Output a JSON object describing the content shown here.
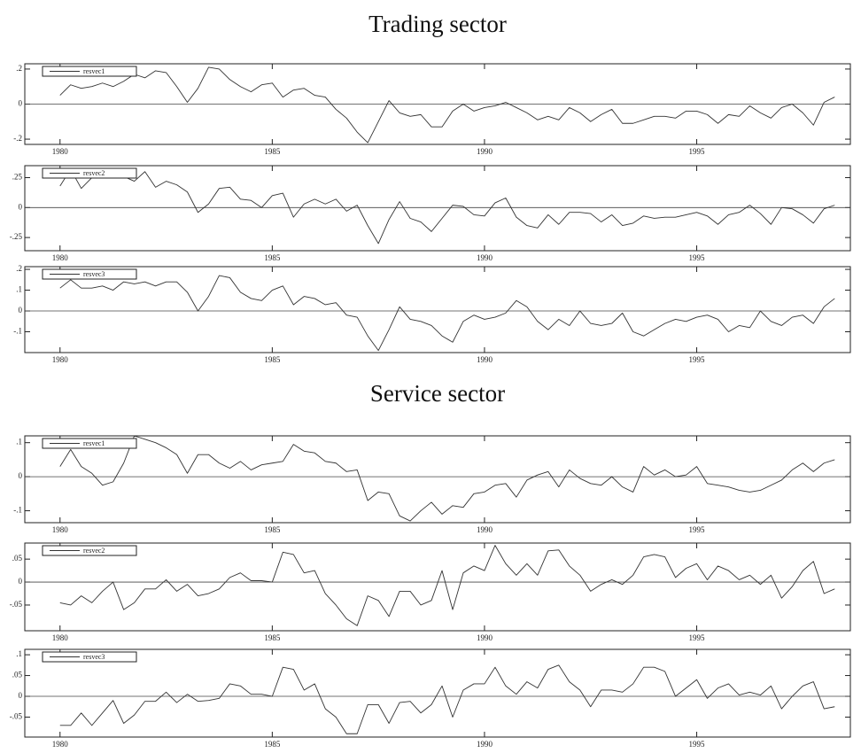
{
  "chart_data": [
    {
      "type": "line",
      "title": "Trading sector",
      "x": [
        1980,
        1980.25,
        1980.5,
        1980.75,
        1981,
        1981.25,
        1981.5,
        1981.75,
        1982,
        1982.25,
        1982.5,
        1982.75,
        1983,
        1983.25,
        1983.5,
        1983.75,
        1984,
        1984.25,
        1984.5,
        1984.75,
        1985,
        1985.25,
        1985.5,
        1985.75,
        1986,
        1986.25,
        1986.5,
        1986.75,
        1987,
        1987.25,
        1987.5,
        1987.75,
        1988,
        1988.25,
        1988.5,
        1988.75,
        1989,
        1989.25,
        1989.5,
        1989.75,
        1990,
        1990.25,
        1990.5,
        1990.75,
        1991,
        1991.25,
        1991.5,
        1991.75,
        1992,
        1992.25,
        1992.5,
        1992.75,
        1993,
        1993.25,
        1993.5,
        1993.75,
        1994,
        1994.25,
        1994.5,
        1994.75,
        1995,
        1995.25,
        1995.5,
        1995.75,
        1996,
        1996.25,
        1996.5,
        1996.75,
        1997,
        1997.25,
        1997.5,
        1997.75,
        1998,
        1998.25
      ],
      "series": [
        {
          "name": "resvec1",
          "color": "#333333",
          "values": [
            0.05,
            0.11,
            0.09,
            0.1,
            0.12,
            0.1,
            0.13,
            0.17,
            0.15,
            0.19,
            0.18,
            0.1,
            0.01,
            0.09,
            0.21,
            0.2,
            0.14,
            0.1,
            0.07,
            0.11,
            0.12,
            0.04,
            0.08,
            0.09,
            0.05,
            0.04,
            -0.03,
            -0.08,
            -0.16,
            -0.22,
            -0.1,
            0.02,
            -0.05,
            -0.07,
            -0.06,
            -0.13,
            -0.13,
            -0.04,
            0,
            -0.04,
            -0.02,
            -0.01,
            0.01,
            -0.02,
            -0.05,
            -0.09,
            -0.07,
            -0.09,
            -0.02,
            -0.05,
            -0.1,
            -0.06,
            -0.03,
            -0.11,
            -0.11,
            -0.09,
            -0.07,
            -0.07,
            -0.08,
            -0.04,
            -0.04,
            -0.06,
            -0.11,
            -0.06,
            -0.07,
            -0.01,
            -0.05,
            -0.08,
            -0.02,
            0,
            -0.05,
            -0.12,
            0.01,
            0.04
          ]
        }
      ],
      "xlim": [
        1979.17,
        1998.62
      ],
      "xticks": [
        1980,
        1985,
        1990,
        1995
      ],
      "ylim": [
        -0.23,
        0.23
      ],
      "yticks": [
        {
          "value": 0.2,
          "label": ".2"
        },
        0,
        {
          "value": -0.2,
          "label": "-.2"
        }
      ],
      "zero_line": true,
      "legend": "upper left"
    },
    {
      "type": "line",
      "x": [
        1980,
        1980.25,
        1980.5,
        1980.75,
        1981,
        1981.25,
        1981.5,
        1981.75,
        1982,
        1982.25,
        1982.5,
        1982.75,
        1983,
        1983.25,
        1983.5,
        1983.75,
        1984,
        1984.25,
        1984.5,
        1984.75,
        1985,
        1985.25,
        1985.5,
        1985.75,
        1986,
        1986.25,
        1986.5,
        1986.75,
        1987,
        1987.25,
        1987.5,
        1987.75,
        1988,
        1988.25,
        1988.5,
        1988.75,
        1989,
        1989.25,
        1989.5,
        1989.75,
        1990,
        1990.25,
        1990.5,
        1990.75,
        1991,
        1991.25,
        1991.5,
        1991.75,
        1992,
        1992.25,
        1992.5,
        1992.75,
        1993,
        1993.25,
        1993.5,
        1993.75,
        1994,
        1994.25,
        1994.5,
        1994.75,
        1995,
        1995.25,
        1995.5,
        1995.75,
        1996,
        1996.25,
        1996.5,
        1996.75,
        1997,
        1997.25,
        1997.5,
        1997.75,
        1998,
        1998.25
      ],
      "series": [
        {
          "name": "resvec2",
          "color": "#333333",
          "values": [
            0.18,
            0.32,
            0.16,
            0.25,
            0.27,
            0.26,
            0.26,
            0.22,
            0.3,
            0.17,
            0.22,
            0.19,
            0.13,
            -0.04,
            0.03,
            0.16,
            0.17,
            0.07,
            0.06,
            0.0,
            0.1,
            0.12,
            -0.08,
            0.03,
            0.07,
            0.03,
            0.07,
            -0.03,
            0.02,
            -0.15,
            -0.3,
            -0.1,
            0.05,
            -0.09,
            -0.12,
            -0.2,
            -0.09,
            0.02,
            0.01,
            -0.06,
            -0.07,
            0.04,
            0.08,
            -0.08,
            -0.15,
            -0.17,
            -0.06,
            -0.14,
            -0.04,
            -0.04,
            -0.05,
            -0.12,
            -0.06,
            -0.15,
            -0.13,
            -0.07,
            -0.09,
            -0.08,
            -0.08,
            -0.06,
            -0.04,
            -0.07,
            -0.14,
            -0.06,
            -0.04,
            0.02,
            -0.05,
            -0.14,
            0.0,
            -0.01,
            -0.06,
            -0.13,
            -0.01,
            0.02
          ]
        }
      ],
      "xlim": [
        1979.17,
        1998.62
      ],
      "xticks": [
        1980,
        1985,
        1990,
        1995
      ],
      "ylim": [
        -0.36,
        0.35
      ],
      "yticks": [
        {
          "value": 0.25,
          "label": ".25"
        },
        0,
        {
          "value": -0.25,
          "label": "-.25"
        }
      ],
      "zero_line": true,
      "legend": "upper left"
    },
    {
      "type": "line",
      "x": [
        1980,
        1980.25,
        1980.5,
        1980.75,
        1981,
        1981.25,
        1981.5,
        1981.75,
        1982,
        1982.25,
        1982.5,
        1982.75,
        1983,
        1983.25,
        1983.5,
        1983.75,
        1984,
        1984.25,
        1984.5,
        1984.75,
        1985,
        1985.25,
        1985.5,
        1985.75,
        1986,
        1986.25,
        1986.5,
        1986.75,
        1987,
        1987.25,
        1987.5,
        1987.75,
        1988,
        1988.25,
        1988.5,
        1988.75,
        1989,
        1989.25,
        1989.5,
        1989.75,
        1990,
        1990.25,
        1990.5,
        1990.75,
        1991,
        1991.25,
        1991.5,
        1991.75,
        1992,
        1992.25,
        1992.5,
        1992.75,
        1993,
        1993.25,
        1993.5,
        1993.75,
        1994,
        1994.25,
        1994.5,
        1994.75,
        1995,
        1995.25,
        1995.5,
        1995.75,
        1996,
        1996.25,
        1996.5,
        1996.75,
        1997,
        1997.25,
        1997.5,
        1997.75,
        1998,
        1998.25
      ],
      "series": [
        {
          "name": "resvec3",
          "color": "#333333",
          "values": [
            0.11,
            0.15,
            0.11,
            0.11,
            0.12,
            0.1,
            0.14,
            0.13,
            0.14,
            0.12,
            0.14,
            0.14,
            0.09,
            0.0,
            0.07,
            0.17,
            0.16,
            0.09,
            0.06,
            0.05,
            0.1,
            0.12,
            0.03,
            0.07,
            0.06,
            0.03,
            0.04,
            -0.02,
            -0.03,
            -0.12,
            -0.19,
            -0.09,
            0.02,
            -0.04,
            -0.05,
            -0.07,
            -0.12,
            -0.15,
            -0.05,
            -0.02,
            -0.04,
            -0.03,
            -0.01,
            0.05,
            0.02,
            -0.05,
            -0.09,
            -0.04,
            -0.07,
            0,
            -0.06,
            -0.07,
            -0.06,
            -0.01,
            -0.1,
            -0.12,
            -0.09,
            -0.06,
            -0.04,
            -0.05,
            -0.03,
            -0.02,
            -0.04,
            -0.1,
            -0.07,
            -0.08,
            0,
            -0.05,
            -0.07,
            -0.03,
            -0.02,
            -0.06,
            0.02,
            0.06
          ]
        }
      ],
      "xlim": [
        1979.17,
        1998.62
      ],
      "xticks": [
        1980,
        1985,
        1990,
        1995
      ],
      "ylim": [
        -0.2,
        0.213
      ],
      "yticks": [
        {
          "value": 0.2,
          "label": ".2"
        },
        {
          "value": 0.1,
          "label": ".1"
        },
        0,
        {
          "value": -0.1,
          "label": "-.1"
        }
      ],
      "zero_line": true,
      "legend": "upper left"
    },
    {
      "type": "line",
      "title": "Service sector",
      "x": [
        1980,
        1980.25,
        1980.5,
        1980.75,
        1981,
        1981.25,
        1981.5,
        1981.75,
        1982,
        1982.25,
        1982.5,
        1982.75,
        1983,
        1983.25,
        1983.5,
        1983.75,
        1984,
        1984.25,
        1984.5,
        1984.75,
        1985,
        1985.25,
        1985.5,
        1985.75,
        1986,
        1986.25,
        1986.5,
        1986.75,
        1987,
        1987.25,
        1987.5,
        1987.75,
        1988,
        1988.25,
        1988.5,
        1988.75,
        1989,
        1989.25,
        1989.5,
        1989.75,
        1990,
        1990.25,
        1990.5,
        1990.75,
        1991,
        1991.25,
        1991.5,
        1991.75,
        1992,
        1992.25,
        1992.5,
        1992.75,
        1993,
        1993.25,
        1993.5,
        1993.75,
        1994,
        1994.25,
        1994.5,
        1994.75,
        1995,
        1995.25,
        1995.5,
        1995.75,
        1996,
        1996.25,
        1996.5,
        1996.75,
        1997,
        1997.25,
        1997.5,
        1997.75,
        1998,
        1998.25
      ],
      "series": [
        {
          "name": "resvec1",
          "color": "#333333",
          "values": [
            0.03,
            0.08,
            0.03,
            0.01,
            -0.025,
            -0.015,
            0.04,
            0.12,
            0.11,
            0.1,
            0.085,
            0.065,
            0.01,
            0.065,
            0.065,
            0.04,
            0.025,
            0.045,
            0.02,
            0.035,
            0.04,
            0.045,
            0.095,
            0.075,
            0.07,
            0.045,
            0.04,
            0.015,
            0.02,
            -0.07,
            -0.045,
            -0.05,
            -0.115,
            -0.13,
            -0.1,
            -0.075,
            -0.11,
            -0.085,
            -0.09,
            -0.05,
            -0.045,
            -0.025,
            -0.02,
            -0.06,
            -0.01,
            0.005,
            0.015,
            -0.03,
            0.02,
            -0.005,
            -0.02,
            -0.025,
            0,
            -0.03,
            -0.045,
            0.03,
            0.005,
            0.02,
            0,
            0.005,
            0.03,
            -0.02,
            -0.025,
            -0.03,
            -0.04,
            -0.045,
            -0.04,
            -0.025,
            -0.01,
            0.02,
            0.04,
            0.015,
            0.04,
            0.05
          ]
        }
      ],
      "xlim": [
        1979.17,
        1998.62
      ],
      "xticks": [
        1980,
        1985,
        1990,
        1995
      ],
      "ylim": [
        -0.135,
        0.12
      ],
      "yticks": [
        {
          "value": 0.1,
          "label": ".1"
        },
        0,
        {
          "value": -0.1,
          "label": "-.1"
        }
      ],
      "zero_line": true,
      "legend": "upper left"
    },
    {
      "type": "line",
      "x": [
        1980,
        1980.25,
        1980.5,
        1980.75,
        1981,
        1981.25,
        1981.5,
        1981.75,
        1982,
        1982.25,
        1982.5,
        1982.75,
        1983,
        1983.25,
        1983.5,
        1983.75,
        1984,
        1984.25,
        1984.5,
        1984.75,
        1985,
        1985.25,
        1985.5,
        1985.75,
        1986,
        1986.25,
        1986.5,
        1986.75,
        1987,
        1987.25,
        1987.5,
        1987.75,
        1988,
        1988.25,
        1988.5,
        1988.75,
        1989,
        1989.25,
        1989.5,
        1989.75,
        1990,
        1990.25,
        1990.5,
        1990.75,
        1991,
        1991.25,
        1991.5,
        1991.75,
        1992,
        1992.25,
        1992.5,
        1992.75,
        1993,
        1993.25,
        1993.5,
        1993.75,
        1994,
        1994.25,
        1994.5,
        1994.75,
        1995,
        1995.25,
        1995.5,
        1995.75,
        1996,
        1996.25,
        1996.5,
        1996.75,
        1997,
        1997.25,
        1997.5,
        1997.75,
        1998,
        1998.25
      ],
      "series": [
        {
          "name": "resvec2",
          "color": "#333333",
          "values": [
            -0.045,
            -0.05,
            -0.03,
            -0.045,
            -0.02,
            0,
            -0.06,
            -0.045,
            -0.015,
            -0.015,
            0.005,
            -0.02,
            -0.005,
            -0.03,
            -0.025,
            -0.015,
            0.01,
            0.02,
            0.003,
            0.003,
            0,
            0.065,
            0.06,
            0.02,
            0.025,
            -0.025,
            -0.05,
            -0.08,
            -0.095,
            -0.03,
            -0.04,
            -0.075,
            -0.02,
            -0.02,
            -0.05,
            -0.04,
            0.025,
            -0.06,
            0.02,
            0.035,
            0.025,
            0.08,
            0.04,
            0.015,
            0.04,
            0.015,
            0.068,
            0.07,
            0.035,
            0.015,
            -0.02,
            -0.005,
            0.005,
            -0.005,
            0.015,
            0.055,
            0.06,
            0.055,
            0.01,
            0.03,
            0.04,
            0.005,
            0.035,
            0.025,
            0.005,
            0.015,
            -0.005,
            0.015,
            -0.035,
            -0.01,
            0.025,
            0.045,
            -0.025,
            -0.015
          ]
        }
      ],
      "xlim": [
        1979.17,
        1998.62
      ],
      "xticks": [
        1980,
        1985,
        1990,
        1995
      ],
      "ylim": [
        -0.106,
        0.085
      ],
      "yticks": [
        {
          "value": 0.05,
          "label": ".05"
        },
        0,
        {
          "value": -0.05,
          "label": "-.05"
        }
      ],
      "zero_line": true,
      "legend": "upper left"
    },
    {
      "type": "line",
      "x": [
        1980,
        1980.25,
        1980.5,
        1980.75,
        1981,
        1981.25,
        1981.5,
        1981.75,
        1982,
        1982.25,
        1982.5,
        1982.75,
        1983,
        1983.25,
        1983.5,
        1983.75,
        1984,
        1984.25,
        1984.5,
        1984.75,
        1985,
        1985.25,
        1985.5,
        1985.75,
        1986,
        1986.25,
        1986.5,
        1986.75,
        1987,
        1987.25,
        1987.5,
        1987.75,
        1988,
        1988.25,
        1988.5,
        1988.75,
        1989,
        1989.25,
        1989.5,
        1989.75,
        1990,
        1990.25,
        1990.5,
        1990.75,
        1991,
        1991.25,
        1991.5,
        1991.75,
        1992,
        1992.25,
        1992.5,
        1992.75,
        1993,
        1993.25,
        1993.5,
        1993.75,
        1994,
        1994.25,
        1994.5,
        1994.75,
        1995,
        1995.25,
        1995.5,
        1995.75,
        1996,
        1996.25,
        1996.5,
        1996.75,
        1997,
        1997.25,
        1997.5,
        1997.75,
        1998,
        1998.25
      ],
      "series": [
        {
          "name": "resvec3",
          "color": "#333333",
          "values": [
            -0.07,
            -0.07,
            -0.04,
            -0.07,
            -0.04,
            -0.01,
            -0.065,
            -0.045,
            -0.012,
            -0.012,
            0.01,
            -0.015,
            0.005,
            -0.012,
            -0.01,
            -0.005,
            0.03,
            0.025,
            0.005,
            0.005,
            0,
            0.07,
            0.065,
            0.015,
            0.03,
            -0.03,
            -0.05,
            -0.09,
            -0.09,
            -0.02,
            -0.02,
            -0.065,
            -0.015,
            -0.012,
            -0.04,
            -0.02,
            0.025,
            -0.05,
            0.015,
            0.03,
            0.03,
            0.07,
            0.025,
            0.005,
            0.035,
            0.02,
            0.065,
            0.075,
            0.035,
            0.015,
            -0.025,
            0.015,
            0.015,
            0.01,
            0.03,
            0.07,
            0.07,
            0.06,
            0,
            0.02,
            0.04,
            -0.005,
            0.02,
            0.03,
            0.003,
            0.01,
            0.003,
            0.025,
            -0.03,
            0,
            0.025,
            0.035,
            -0.03,
            -0.025
          ]
        }
      ],
      "xlim": [
        1979.17,
        1998.62
      ],
      "xticks": [
        1980,
        1985,
        1990,
        1995
      ],
      "ylim": [
        -0.098,
        0.113
      ],
      "yticks": [
        {
          "value": 0.1,
          "label": ".1"
        },
        {
          "value": 0.05,
          "label": ".05"
        },
        0,
        {
          "value": -0.05,
          "label": "-.05"
        }
      ],
      "zero_line": true,
      "legend": "upper left"
    }
  ]
}
